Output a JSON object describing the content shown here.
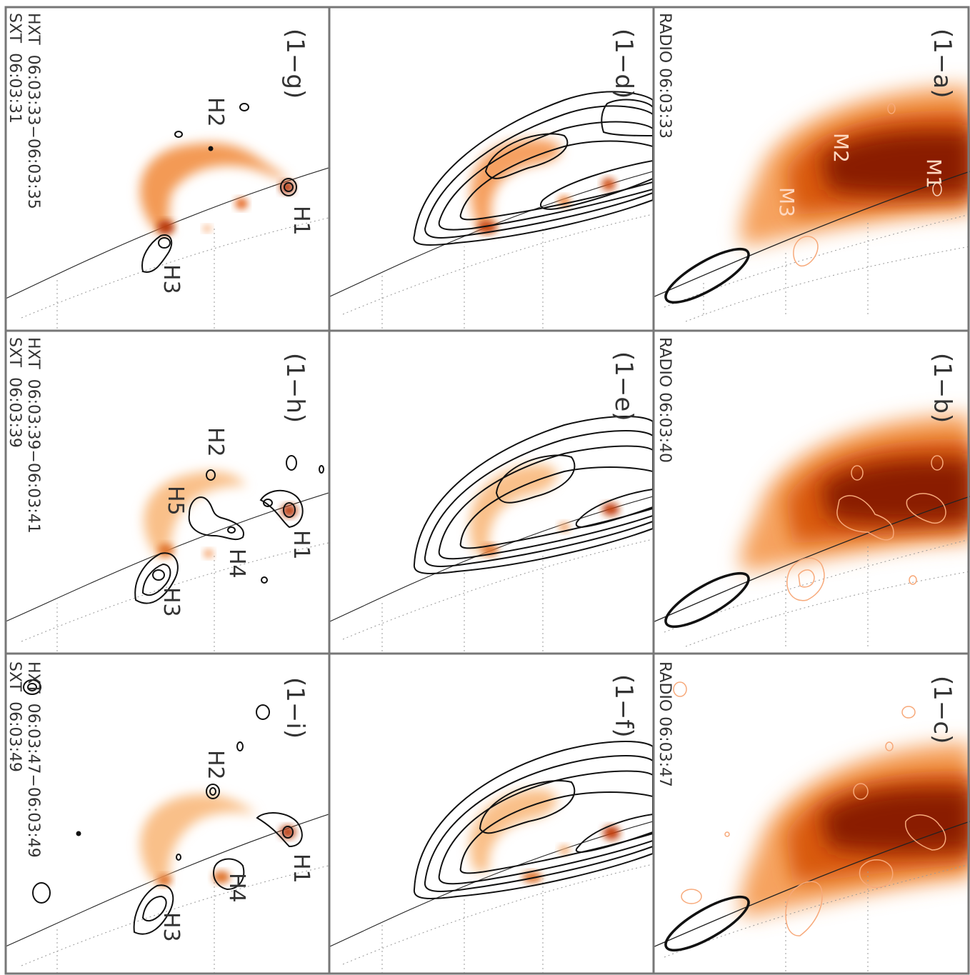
{
  "colors": {
    "background": "#ffffff",
    "frame": "#777777",
    "contour_black": "#111111",
    "contour_orange": "#f7a97a",
    "sxt_light": "#fdd7b4",
    "sxt_mid": "#f39a55",
    "sxt_dark": "#b83a08",
    "radio_light": "#f6a35e",
    "radio_mid": "#d95a10",
    "radio_dark": "#8a1c05",
    "limb": "#222222",
    "grid": "#999999"
  },
  "panels": [
    {
      "id": "1-a",
      "label": "(1−a)",
      "header": "RADIO 06:03:33",
      "sources": [
        "M2",
        "M1",
        "M3"
      ]
    },
    {
      "id": "1-b",
      "label": "(1−b)",
      "header": "RADIO 06:03:40",
      "sources": []
    },
    {
      "id": "1-c",
      "label": "(1−c)",
      "header": "RADIO 06:03:47",
      "sources": []
    },
    {
      "id": "1-d",
      "label": "(1−d)",
      "header": "",
      "sources": []
    },
    {
      "id": "1-e",
      "label": "(1−e)",
      "header": "",
      "sources": []
    },
    {
      "id": "1-f",
      "label": "(1−f)",
      "header": "",
      "sources": []
    },
    {
      "id": "1-g",
      "label": "(1−g)",
      "hxt": "HXT  06:03:33−06:03:35",
      "sxt": "SXT  06:03:31",
      "sources": [
        "H2",
        "H1",
        "H3"
      ]
    },
    {
      "id": "1-h",
      "label": "(1−h)",
      "hxt": "HXT  06:03:39−06:03:41",
      "sxt": "SXT  06:03:39",
      "sources": [
        "H2",
        "H5",
        "H1",
        "H4",
        "H3"
      ]
    },
    {
      "id": "1-i",
      "label": "(1−i)",
      "hxt": "HXT  06:03:47−06:03:49",
      "sxt": "SXT  06:03:49",
      "sources": [
        "H2",
        "H1",
        "H4",
        "H3"
      ]
    }
  ]
}
